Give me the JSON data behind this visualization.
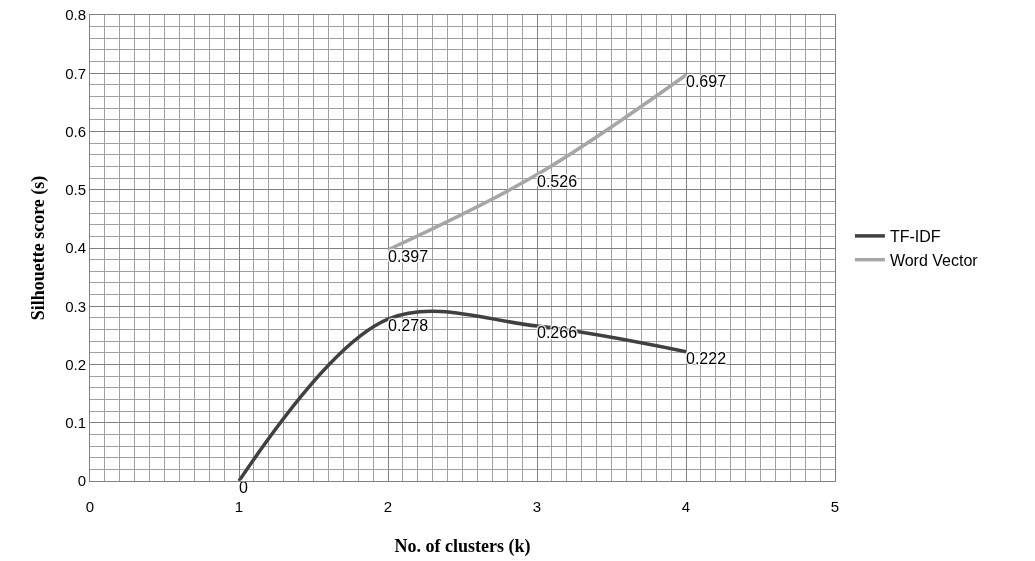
{
  "chart_data": {
    "type": "line",
    "xlabel": "No. of clusters (k)",
    "ylabel": "Silhouette score (s)",
    "xlim": [
      0,
      5
    ],
    "xticks": [
      0,
      1,
      2,
      3,
      4,
      5
    ],
    "ylim": [
      0,
      0.8
    ],
    "yticks": [
      0,
      0.1,
      0.2,
      0.3,
      0.4,
      0.5,
      0.6,
      0.7,
      0.8
    ],
    "series": [
      {
        "name": "TF-IDF",
        "color": "#404040",
        "x": [
          1,
          2,
          3,
          4
        ],
        "values": [
          0,
          0.278,
          0.266,
          0.222
        ]
      },
      {
        "name": "Word Vector",
        "color": "#a6a6a6",
        "x": [
          2,
          3,
          4
        ],
        "values": [
          0.397,
          0.526,
          0.697
        ]
      }
    ],
    "data_labels": true,
    "grid": true,
    "legend": "right",
    "marker": "none",
    "line_style": "solid"
  }
}
